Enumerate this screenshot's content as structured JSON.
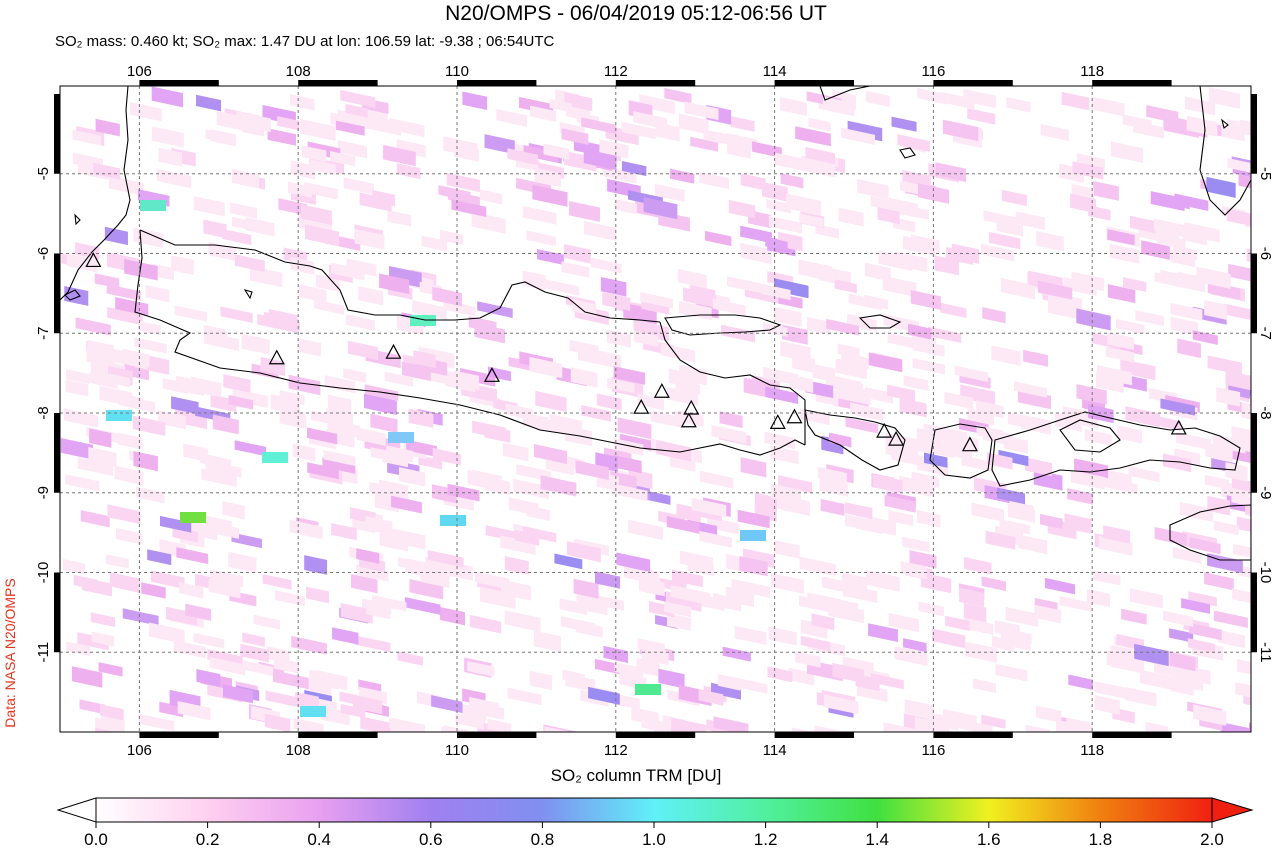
{
  "title": "N20/OMPS - 06/04/2019 05:12-06:56 UT",
  "subtitle": "SO₂ mass: 0.460 kt; SO₂ max: 1.47 DU at lon: 106.59 lat: -9.38 ; 06:54UTC",
  "credit": "Data: NASA N20/OMPS",
  "map": {
    "lon_range": [
      105.0,
      120.0
    ],
    "lat_range": [
      -12.0,
      -3.9
    ],
    "lon_ticks": [
      "106",
      "108",
      "110",
      "112",
      "114",
      "116",
      "118"
    ],
    "lat_ticks": [
      "-5",
      "-6",
      "-7",
      "-8",
      "-9",
      "-10",
      "-11"
    ],
    "gridlines": true,
    "volcanoes": [
      {
        "lon": 105.42,
        "lat": -6.1
      },
      {
        "lon": 107.73,
        "lat": -7.32
      },
      {
        "lon": 109.2,
        "lat": -7.25
      },
      {
        "lon": 110.44,
        "lat": -7.54
      },
      {
        "lon": 112.32,
        "lat": -7.94
      },
      {
        "lon": 112.58,
        "lat": -7.74
      },
      {
        "lon": 112.95,
        "lat": -7.95
      },
      {
        "lon": 112.92,
        "lat": -8.11
      },
      {
        "lon": 114.04,
        "lat": -8.13
      },
      {
        "lon": 114.25,
        "lat": -8.06
      },
      {
        "lon": 115.38,
        "lat": -8.24
      },
      {
        "lon": 115.53,
        "lat": -8.34
      },
      {
        "lon": 116.46,
        "lat": -8.41
      },
      {
        "lon": 119.09,
        "lat": -8.2
      }
    ]
  },
  "colorbar": {
    "title": "SO₂ column TRM [DU]",
    "ticks": [
      "0.0",
      "0.2",
      "0.4",
      "0.6",
      "0.8",
      "1.0",
      "1.2",
      "1.4",
      "1.6",
      "1.8",
      "2.0"
    ],
    "range": [
      0.0,
      2.0
    ],
    "colors": [
      "#ffffff",
      "#ffd0f0",
      "#e8a0f0",
      "#a080f0",
      "#8090f0",
      "#60f0f8",
      "#50f0a0",
      "#40e040",
      "#f0f020",
      "#f08010",
      "#f02010"
    ]
  }
}
